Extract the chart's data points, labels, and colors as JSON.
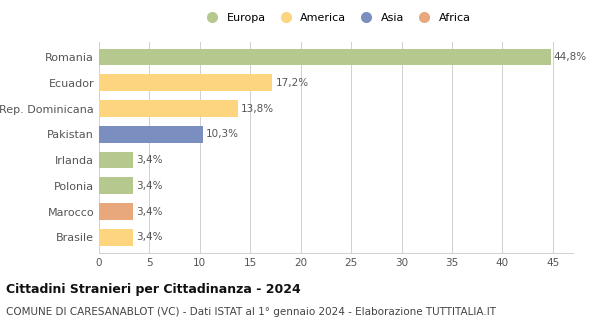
{
  "categories": [
    "Romania",
    "Ecuador",
    "Rep. Dominicana",
    "Pakistan",
    "Irlanda",
    "Polonia",
    "Marocco",
    "Brasile"
  ],
  "values": [
    44.8,
    17.2,
    13.8,
    10.3,
    3.4,
    3.4,
    3.4,
    3.4
  ],
  "labels": [
    "44,8%",
    "17,2%",
    "13,8%",
    "10,3%",
    "3,4%",
    "3,4%",
    "3,4%",
    "3,4%"
  ],
  "colors": [
    "#b5c98e",
    "#fdd57e",
    "#fdd57e",
    "#7a8fc0",
    "#b5c98e",
    "#b5c98e",
    "#e8a87c",
    "#fdd57e"
  ],
  "legend_labels": [
    "Europa",
    "America",
    "Asia",
    "Africa"
  ],
  "legend_colors": [
    "#b5c98e",
    "#fdd57e",
    "#7a8fc0",
    "#e8a87c"
  ],
  "xlim": [
    0,
    47
  ],
  "xticks": [
    0,
    5,
    10,
    15,
    20,
    25,
    30,
    35,
    40,
    45
  ],
  "title": "Cittadini Stranieri per Cittadinanza - 2024",
  "subtitle": "COMUNE DI CARESANABLOT (VC) - Dati ISTAT al 1° gennaio 2024 - Elaborazione TUTTITALIA.IT",
  "title_fontsize": 9,
  "subtitle_fontsize": 7.5,
  "bar_height": 0.65,
  "background_color": "#ffffff",
  "grid_color": "#d0d0d0",
  "label_fontsize": 7.5,
  "ytick_fontsize": 8,
  "xtick_fontsize": 7.5
}
